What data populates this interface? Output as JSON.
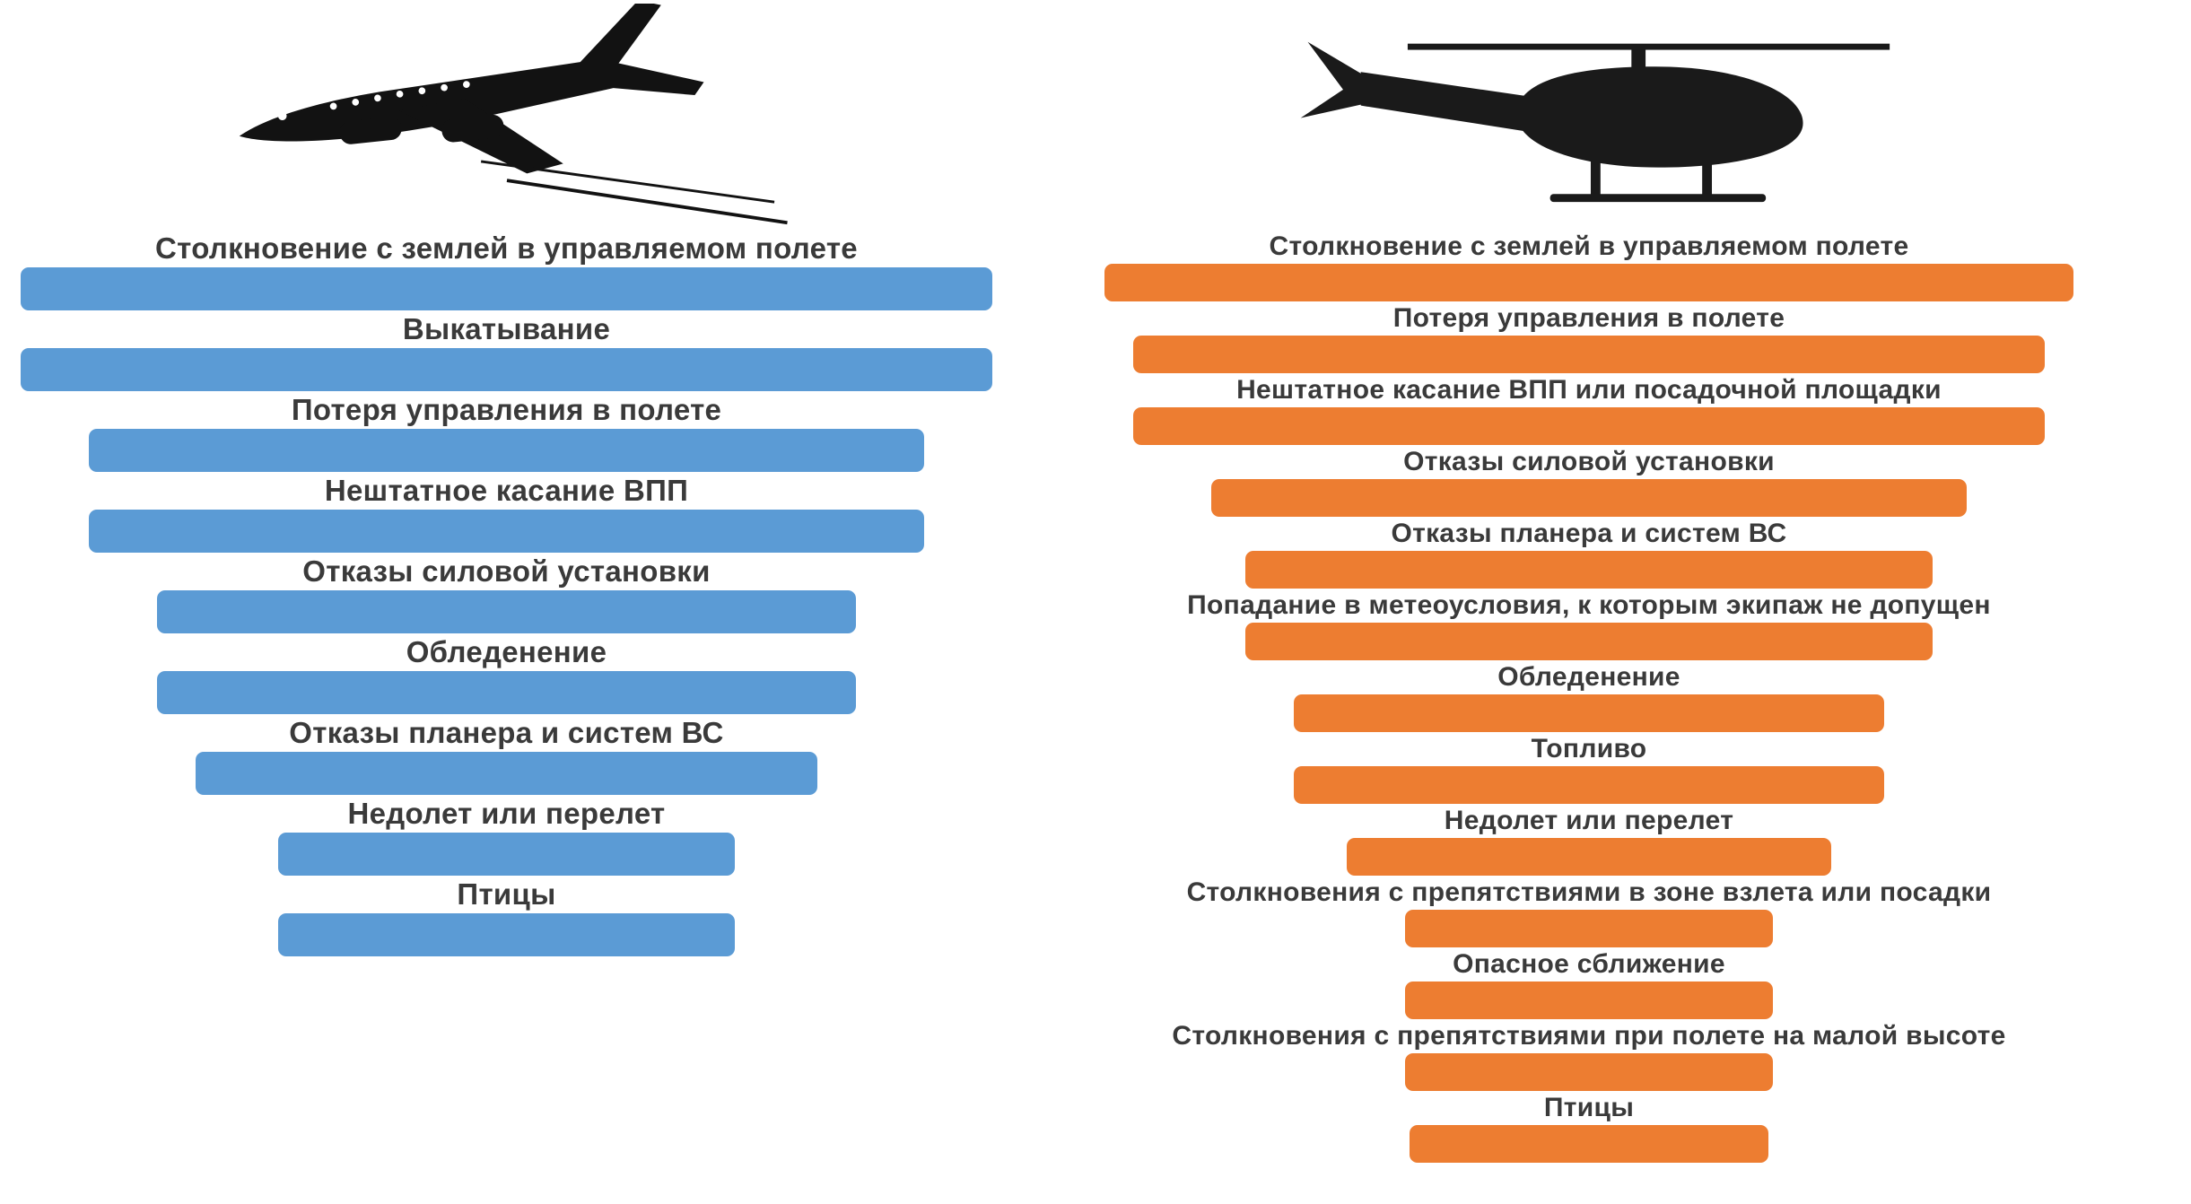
{
  "page": {
    "background_color": "#ffffff",
    "label_color": "#3a3a3a"
  },
  "icons": {
    "left": "airplane-icon",
    "right": "helicopter-icon"
  },
  "chart_data": [
    {
      "type": "bar",
      "subtype": "funnel",
      "orientation": "horizontal",
      "icon": "airplane",
      "bar_color": "#5B9BD5",
      "title": "",
      "xlabel": "",
      "ylabel": "",
      "value_scale": "percent of widest bar (estimated from pixel widths)",
      "categories": [
        "Столкновение с землей в управляемом полете",
        "Выкатывание",
        "Потеря управления в полете",
        "Нештатное касание ВПП",
        "Отказы силовой установки",
        "Обледенение",
        "Отказы планера и систем ВС",
        "Недолет или перелет",
        "Птицы"
      ],
      "values": [
        100,
        100,
        86,
        86,
        72,
        72,
        64,
        47,
        47
      ]
    },
    {
      "type": "bar",
      "subtype": "funnel",
      "orientation": "horizontal",
      "icon": "helicopter",
      "bar_color": "#ED7D31",
      "title": "",
      "xlabel": "",
      "ylabel": "",
      "value_scale": "percent of widest bar (estimated from pixel widths)",
      "categories": [
        "Столкновение с землей в управляемом полете",
        "Потеря управления в полете",
        "Нештатное касание ВПП или посадочной площадки",
        "Отказы силовой установки",
        "Отказы планера и систем ВС",
        "Попадание в метеоусловия, к которым экипаж не допущен",
        "Обледенение",
        "Топливо",
        "Недолет или перелет",
        "Столкновения с препятствиями в зоне взлета или посадки",
        "Опасное сближение",
        "Столкновения с препятствиями при полете на малой высоте",
        "Птицы"
      ],
      "values": [
        100,
        94,
        94,
        78,
        71,
        71,
        61,
        61,
        50,
        38,
        38,
        38,
        37
      ]
    }
  ]
}
